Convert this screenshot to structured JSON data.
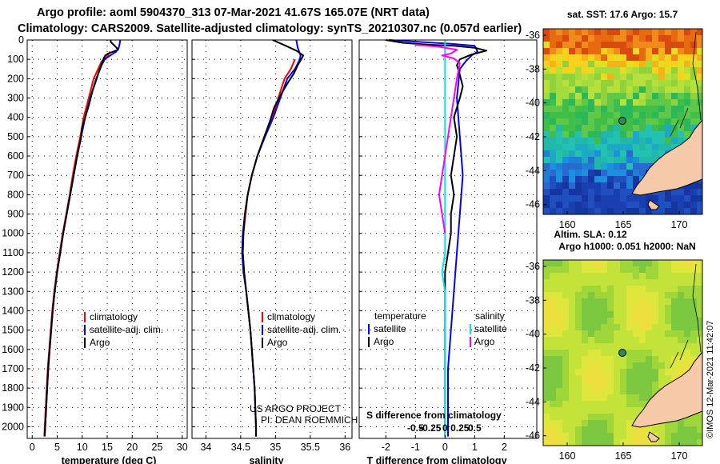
{
  "header": {
    "line1": "Argo profile: aoml 5904370_313 07-Mar-2021 41.67S 165.07E (NRT data)",
    "line2": "Climatology: CARS2009. Satellite-adjusted climatology: synTS_20210307.nc (0.057d earlier)"
  },
  "colors": {
    "climatology": "#ff0000",
    "satellite": "#0000ff",
    "argo": "#000000",
    "sal_satellite": "#00e5ee",
    "sal_argo": "#ff00ff",
    "land": "#f6c9a8"
  },
  "chart_data": [
    {
      "type": "line",
      "id": "temperature",
      "xlabel": "temperature (deg C)",
      "xlim": [
        -1,
        31
      ],
      "xticks": [
        0,
        5,
        10,
        15,
        20,
        25,
        30
      ],
      "ylim": [
        2060,
        0
      ],
      "yticks": [
        0,
        100,
        200,
        300,
        400,
        500,
        600,
        700,
        800,
        900,
        1000,
        1100,
        1200,
        1300,
        1400,
        1500,
        1600,
        1700,
        1800,
        1900,
        2000
      ],
      "grid": true,
      "legend": [
        "climatology",
        "satellite-adj. clim.",
        "Argo"
      ],
      "series": [
        {
          "name": "climatology",
          "color": "#ff0000",
          "points": [
            [
              15.6,
              60
            ],
            [
              14.8,
              90
            ],
            [
              13.9,
              110
            ],
            [
              12.3,
              200
            ],
            [
              11.3,
              300
            ],
            [
              10.3,
              400
            ],
            [
              9.6,
              500
            ],
            [
              8.8,
              600
            ],
            [
              8.1,
              700
            ],
            [
              7.5,
              800
            ],
            [
              6.8,
              900
            ],
            [
              6.1,
              1000
            ],
            [
              5.5,
              1100
            ],
            [
              4.9,
              1200
            ],
            [
              4.4,
              1300
            ],
            [
              4.0,
              1400
            ],
            [
              3.7,
              1500
            ],
            [
              3.4,
              1600
            ],
            [
              3.1,
              1700
            ],
            [
              2.9,
              1800
            ],
            [
              2.7,
              1900
            ],
            [
              2.5,
              2000
            ],
            [
              2.4,
              2050
            ]
          ]
        },
        {
          "name": "satellite-adj. clim.",
          "color": "#0000ff",
          "points": [
            [
              17.6,
              0
            ],
            [
              17.5,
              20
            ],
            [
              17.3,
              40
            ],
            [
              16.8,
              60
            ],
            [
              15.6,
              80
            ],
            [
              14.5,
              100
            ],
            [
              13.9,
              130
            ],
            [
              12.8,
              200
            ],
            [
              11.6,
              300
            ],
            [
              10.6,
              400
            ],
            [
              9.8,
              500
            ],
            [
              9.0,
              600
            ],
            [
              8.3,
              700
            ],
            [
              7.6,
              800
            ],
            [
              6.9,
              900
            ],
            [
              6.2,
              1000
            ],
            [
              5.6,
              1100
            ],
            [
              5.0,
              1200
            ],
            [
              4.5,
              1300
            ],
            [
              4.1,
              1400
            ],
            [
              3.8,
              1500
            ],
            [
              3.5,
              1600
            ],
            [
              3.2,
              1700
            ],
            [
              3.0,
              1800
            ],
            [
              2.8,
              1900
            ],
            [
              2.6,
              2000
            ],
            [
              2.5,
              2050
            ]
          ]
        },
        {
          "name": "Argo",
          "color": "#000000",
          "points": [
            [
              15.7,
              0
            ],
            [
              15.7,
              10
            ],
            [
              16.5,
              30
            ],
            [
              17.2,
              50
            ],
            [
              16.2,
              60
            ],
            [
              15.2,
              70
            ],
            [
              14.6,
              80
            ],
            [
              14.3,
              95
            ],
            [
              14.1,
              110
            ],
            [
              13.5,
              150
            ],
            [
              12.9,
              200
            ],
            [
              12.1,
              260
            ],
            [
              11.3,
              340
            ],
            [
              10.6,
              400
            ],
            [
              10.0,
              450
            ],
            [
              9.8,
              500
            ],
            [
              9.0,
              600
            ],
            [
              8.3,
              700
            ],
            [
              7.6,
              800
            ],
            [
              6.9,
              900
            ],
            [
              6.2,
              1000
            ],
            [
              5.6,
              1100
            ],
            [
              5.0,
              1200
            ],
            [
              4.5,
              1300
            ],
            [
              4.1,
              1400
            ],
            [
              3.8,
              1500
            ],
            [
              3.5,
              1600
            ],
            [
              3.2,
              1700
            ],
            [
              3.0,
              1800
            ],
            [
              2.8,
              1900
            ],
            [
              2.6,
              2000
            ],
            [
              2.5,
              2050
            ]
          ]
        }
      ]
    },
    {
      "type": "line",
      "id": "salinity",
      "xlabel": "salinity",
      "xlim": [
        33.8,
        36.1
      ],
      "xticks": [
        34,
        34.5,
        35,
        35.5,
        36
      ],
      "ylim": [
        2060,
        0
      ],
      "grid": true,
      "legend": [
        "climatology",
        "satellite-adj. clim.",
        "Argo"
      ],
      "notes": [
        "US ARGO PROJECT",
        "PI: DEAN ROEMMICH"
      ],
      "series": [
        {
          "name": "climatology",
          "color": "#ff0000",
          "points": [
            [
              35.28,
              100
            ],
            [
              35.22,
              150
            ],
            [
              35.13,
              200
            ],
            [
              35.04,
              300
            ],
            [
              34.96,
              400
            ],
            [
              34.84,
              500
            ],
            [
              34.74,
              600
            ],
            [
              34.66,
              700
            ],
            [
              34.6,
              800
            ],
            [
              34.57,
              900
            ],
            [
              34.54,
              1000
            ],
            [
              34.53,
              1100
            ],
            [
              34.55,
              1200
            ],
            [
              34.58,
              1300
            ],
            [
              34.61,
              1400
            ],
            [
              34.64,
              1500
            ],
            [
              34.66,
              1600
            ],
            [
              34.68,
              1700
            ],
            [
              34.7,
              1800
            ],
            [
              34.71,
              1900
            ],
            [
              34.72,
              2000
            ],
            [
              34.72,
              2050
            ]
          ]
        },
        {
          "name": "satellite-adj. clim.",
          "color": "#0000ff",
          "points": [
            [
              35.3,
              0
            ],
            [
              35.32,
              40
            ],
            [
              35.36,
              80
            ],
            [
              35.35,
              100
            ],
            [
              35.28,
              150
            ],
            [
              35.17,
              200
            ],
            [
              35.07,
              300
            ],
            [
              34.97,
              400
            ],
            [
              34.85,
              500
            ],
            [
              34.74,
              600
            ],
            [
              34.66,
              700
            ],
            [
              34.6,
              800
            ],
            [
              34.56,
              900
            ],
            [
              34.53,
              1000
            ],
            [
              34.52,
              1100
            ],
            [
              34.54,
              1200
            ],
            [
              34.58,
              1300
            ],
            [
              34.61,
              1400
            ],
            [
              34.64,
              1500
            ],
            [
              34.66,
              1600
            ],
            [
              34.68,
              1700
            ],
            [
              34.7,
              1800
            ],
            [
              34.71,
              1900
            ],
            [
              34.72,
              2000
            ],
            [
              34.72,
              2050
            ]
          ]
        },
        {
          "name": "Argo",
          "color": "#000000",
          "points": [
            [
              34.96,
              0
            ],
            [
              35.15,
              30
            ],
            [
              35.3,
              55
            ],
            [
              35.4,
              80
            ],
            [
              35.37,
              100
            ],
            [
              35.32,
              130
            ],
            [
              35.27,
              170
            ],
            [
              35.18,
              220
            ],
            [
              35.08,
              280
            ],
            [
              34.98,
              350
            ],
            [
              34.92,
              420
            ],
            [
              34.84,
              500
            ],
            [
              34.74,
              600
            ],
            [
              34.66,
              700
            ],
            [
              34.6,
              800
            ],
            [
              34.56,
              900
            ],
            [
              34.54,
              1000
            ],
            [
              34.53,
              1100
            ],
            [
              34.55,
              1200
            ],
            [
              34.58,
              1300
            ],
            [
              34.61,
              1400
            ],
            [
              34.64,
              1500
            ],
            [
              34.66,
              1600
            ],
            [
              34.68,
              1700
            ],
            [
              34.7,
              1800
            ],
            [
              34.71,
              1900
            ],
            [
              34.72,
              2000
            ],
            [
              34.72,
              2050
            ]
          ]
        }
      ]
    },
    {
      "type": "line",
      "id": "difference",
      "xlabel": "T difference from climatology",
      "sublabel": "S difference from climatology",
      "xlim": [
        -2.9,
        3.1
      ],
      "xticks": [
        -2,
        -1,
        0,
        1,
        2
      ],
      "s_ticks": [
        "-0.5",
        "-0.25",
        "0",
        "0.25",
        "0.5"
      ],
      "ylim": [
        2060,
        0
      ],
      "grid": true,
      "legend": {
        "temperature_title": "temperature",
        "salinity_title": "salinity",
        "temperature": [
          "satellite",
          "Argo"
        ],
        "salinity": [
          "satellite",
          "Argo"
        ]
      },
      "series": [
        {
          "name": "temperature satellite",
          "color": "#0000ff",
          "points": [
            [
              -1.9,
              0
            ],
            [
              0.2,
              20
            ],
            [
              1.0,
              30
            ],
            [
              1.1,
              60
            ],
            [
              0.9,
              80
            ],
            [
              0.7,
              110
            ],
            [
              0.5,
              150
            ],
            [
              0.4,
              300
            ],
            [
              0.5,
              500
            ],
            [
              0.6,
              700
            ],
            [
              0.5,
              900
            ],
            [
              0.4,
              1100
            ],
            [
              0.3,
              1300
            ],
            [
              0.2,
              1500
            ],
            [
              0.1,
              1700
            ],
            [
              0.1,
              1900
            ],
            [
              0.1,
              2050
            ]
          ]
        },
        {
          "name": "temperature Argo",
          "color": "#000000",
          "points": [
            [
              -2.0,
              0
            ],
            [
              -1.4,
              15
            ],
            [
              -0.5,
              25
            ],
            [
              0.3,
              30
            ],
            [
              1.0,
              40
            ],
            [
              1.4,
              55
            ],
            [
              0.9,
              75
            ],
            [
              0.5,
              100
            ],
            [
              0.4,
              130
            ],
            [
              0.5,
              180
            ],
            [
              0.6,
              240
            ],
            [
              0.5,
              300
            ],
            [
              0.3,
              400
            ],
            [
              0.4,
              500
            ],
            [
              0.3,
              600
            ],
            [
              0.2,
              700
            ],
            [
              0.3,
              800
            ],
            [
              0.2,
              900
            ],
            [
              0.2,
              1000
            ],
            [
              0.1,
              1100
            ],
            [
              0.0,
              1200
            ],
            [
              0.0,
              1300
            ],
            [
              0.0,
              1400
            ],
            [
              0.0,
              1500
            ],
            [
              0.0,
              1600
            ],
            [
              0.0,
              1700
            ],
            [
              0.0,
              1800
            ],
            [
              0.0,
              1900
            ],
            [
              0.0,
              2050
            ]
          ]
        },
        {
          "name": "salinity satellite",
          "color": "#00e5ee",
          "points": [
            [
              0.0,
              0
            ],
            [
              0.0,
              300
            ],
            [
              0.0,
              500
            ],
            [
              0.0,
              700
            ],
            [
              0.0,
              900
            ],
            [
              0.0,
              1100
            ],
            [
              -0.1,
              1200
            ],
            [
              0.0,
              1300
            ],
            [
              0.0,
              1500
            ],
            [
              0.0,
              1700
            ],
            [
              0.0,
              2050
            ]
          ]
        },
        {
          "name": "salinity Argo",
          "color": "#ff00ff",
          "points": [
            [
              -1.0,
              25
            ],
            [
              -0.2,
              35
            ],
            [
              0.4,
              50
            ],
            [
              0.2,
              70
            ],
            [
              -0.1,
              80
            ],
            [
              0.3,
              95
            ],
            [
              0.5,
              120
            ],
            [
              0.4,
              200
            ],
            [
              0.3,
              300
            ],
            [
              0.2,
              400
            ],
            [
              0.1,
              500
            ],
            [
              0.0,
              600
            ],
            [
              -0.1,
              700
            ],
            [
              -0.2,
              800
            ],
            [
              -0.1,
              900
            ],
            [
              0.0,
              1000
            ]
          ]
        }
      ]
    }
  ],
  "maps": {
    "sst": {
      "title": "sat. SST: 17.6 Argo: 15.7",
      "lat_ticks": [
        "-36",
        "-38",
        "-40",
        "-42",
        "-44",
        "-46"
      ],
      "lon_ticks": [
        "160",
        "165",
        "170"
      ]
    },
    "sla": {
      "title1": "Altim. SLA: 0.12",
      "title2": "Argo h1000: 0.051 h2000: NaN",
      "lat_ticks": [
        "-36",
        "-38",
        "-40",
        "-42",
        "-44",
        "-46"
      ],
      "lon_ticks": [
        "160",
        "165",
        "170"
      ],
      "credit": "©IMOS 12-Mar-2021 11:42:07"
    }
  }
}
